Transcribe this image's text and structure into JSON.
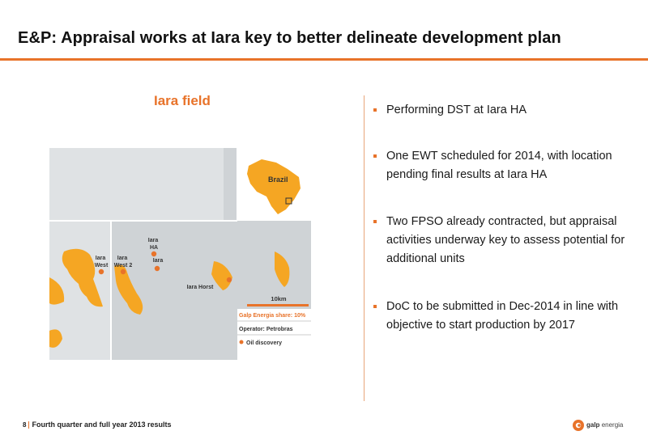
{
  "header": {
    "title": "E&P: Appraisal works at Iara key to better delineate development plan"
  },
  "map": {
    "title": "Iara field",
    "inset_label": "Brazil",
    "labels": {
      "iara_ha": [
        "Iara",
        "HA"
      ],
      "iara": "Iara",
      "iara_west": [
        "Iara",
        "West"
      ],
      "iara_west2": [
        "Iara",
        "West 2"
      ],
      "iara_horst": "Iara Horst"
    },
    "scale": "10km",
    "legend": {
      "share": "Galp Energia share: 10%",
      "operator": "Operator: Petrobras",
      "oil": "Oil discovery"
    }
  },
  "bullets": [
    "Performing DST at Iara HA",
    "One EWT scheduled for 2014, with location pending final results at Iara HA",
    "Two FPSO already contracted, but appraisal activities underway key to assess potential for additional units",
    "DoC to be submitted in Dec-2014 in line with objective to start production by 2017"
  ],
  "footer": {
    "page": "8",
    "text": "Fourth quarter and full year 2013 results"
  },
  "logo": {
    "brand": "galp",
    "suffix": "energia"
  },
  "colors": {
    "accent": "#e8732a",
    "map_block": "#cfd3d6",
    "oil": "#f5a623"
  }
}
